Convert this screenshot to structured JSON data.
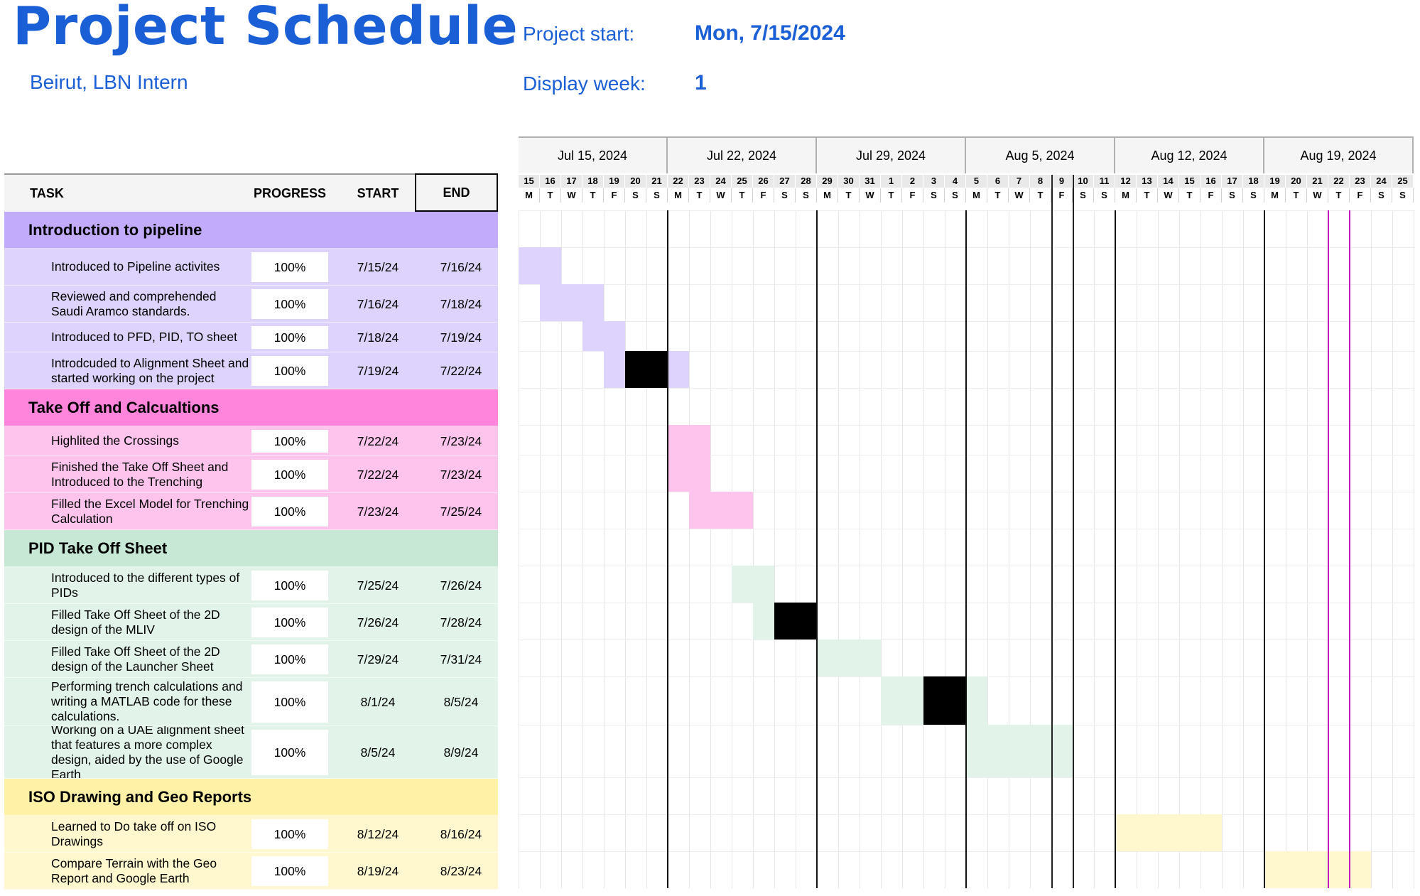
{
  "header": {
    "title": "Project Schedule",
    "subtitle": "Beirut, LBN Intern",
    "project_start_label": "Project start:",
    "project_start_value": "Mon, 7/15/2024",
    "display_week_label": "Display week:",
    "display_week_value": "1"
  },
  "table": {
    "columns": {
      "task": "TASK",
      "progress": "PROGRESS",
      "start": "START",
      "end": "END"
    }
  },
  "colors": {
    "phase1": {
      "header": "#c1abfa",
      "row": "#ded3fc"
    },
    "phase2": {
      "header": "#ff85dc",
      "row": "#ffc4ed"
    },
    "phase3": {
      "header": "#c6e8d5",
      "row": "#e2f3ea"
    },
    "phase4": {
      "header": "#fff1a6",
      "row": "#fff8cf"
    },
    "blocked": "#000000",
    "today_marker": "#c21ac2"
  },
  "timeline": {
    "weeks": [
      "Jul 15, 2024",
      "Jul 22, 2024",
      "Jul 29, 2024",
      "Aug 5, 2024",
      "Aug 12, 2024",
      "Aug 19, 2024"
    ],
    "day_numbers": [
      "15",
      "16",
      "17",
      "18",
      "19",
      "20",
      "21",
      "22",
      "23",
      "24",
      "25",
      "26",
      "27",
      "28",
      "29",
      "30",
      "31",
      "1",
      "2",
      "3",
      "4",
      "5",
      "6",
      "7",
      "8",
      "9",
      "10",
      "11",
      "12",
      "13",
      "14",
      "15",
      "16",
      "17",
      "18",
      "19",
      "20",
      "21",
      "22",
      "23",
      "24",
      "25"
    ],
    "day_letters": [
      "M",
      "T",
      "W",
      "T",
      "F",
      "S",
      "S"
    ]
  },
  "phases": [
    {
      "name": "Introduction to pipeline",
      "color_key": "phase1",
      "tasks": [
        {
          "name": "Introduced to Pipeline activites",
          "progress": "100%",
          "start": "7/15/24",
          "end": "7/16/24"
        },
        {
          "name": "Reviewed and comprehended Saudi Aramco standards.",
          "progress": "100%",
          "start": "7/16/24",
          "end": "7/18/24"
        },
        {
          "name": "Introduced to PFD, PID, TO sheet",
          "progress": "100%",
          "start": "7/18/24",
          "end": "7/19/24"
        },
        {
          "name": "Introdcuded to Alignment Sheet and started working on the project",
          "progress": "100%",
          "start": "7/19/24",
          "end": "7/22/24"
        }
      ]
    },
    {
      "name": "Take Off and Calcualtions",
      "color_key": "phase2",
      "tasks": [
        {
          "name": "Highlited the Crossings",
          "progress": "100%",
          "start": "7/22/24",
          "end": "7/23/24"
        },
        {
          "name": "Finished the Take Off Sheet and Introduced to the Trenching",
          "progress": "100%",
          "start": "7/22/24",
          "end": "7/23/24"
        },
        {
          "name": "Filled the Excel Model for Trenching Calculation",
          "progress": "100%",
          "start": "7/23/24",
          "end": "7/25/24"
        }
      ]
    },
    {
      "name": "PID Take Off Sheet",
      "color_key": "phase3",
      "tasks": [
        {
          "name": "Introduced to the different types of PIDs",
          "progress": "100%",
          "start": "7/25/24",
          "end": "7/26/24"
        },
        {
          "name": "Filled Take Off Sheet of the 2D design of the MLIV",
          "progress": "100%",
          "start": "7/26/24",
          "end": "7/28/24"
        },
        {
          "name": "Filled Take Off Sheet of the 2D design of the Launcher Sheet",
          "progress": "100%",
          "start": "7/29/24",
          "end": "7/31/24"
        },
        {
          "name": "Performing trench calculations and writing a MATLAB code for these calculations.",
          "progress": "100%",
          "start": "8/1/24",
          "end": "8/5/24"
        },
        {
          "name": "Working on a UAE alignment sheet that features a more complex design, aided by the use of Google Earth",
          "progress": "100%",
          "start": "8/5/24",
          "end": "8/9/24"
        }
      ]
    },
    {
      "name": "ISO Drawing and Geo Reports",
      "color_key": "phase4",
      "tasks": [
        {
          "name": "Learned to Do take off on ISO Drawings",
          "progress": "100%",
          "start": "8/12/24",
          "end": "8/16/24"
        },
        {
          "name": "Compare Terrain with the Geo Report and Google Earth",
          "progress": "100%",
          "start": "8/19/24",
          "end": "8/23/24"
        }
      ]
    }
  ]
}
